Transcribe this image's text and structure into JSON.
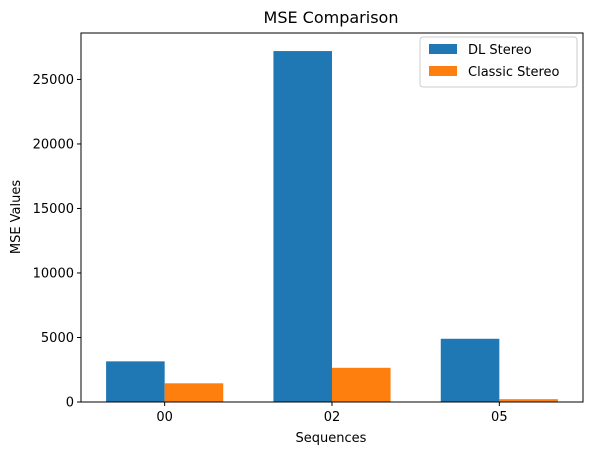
{
  "chart_data": {
    "type": "bar",
    "title": "MSE Comparison",
    "xlabel": "Sequences",
    "ylabel": "MSE Values",
    "categories": [
      "00",
      "02",
      "05"
    ],
    "series": [
      {
        "name": "DL Stereo",
        "color": "#1f77b4",
        "values": [
          3150,
          27200,
          4900
        ]
      },
      {
        "name": "Classic Stereo",
        "color": "#ff7f0e",
        "values": [
          1450,
          2650,
          220
        ]
      }
    ],
    "ylim": [
      0,
      28600
    ],
    "yticks": [
      0,
      5000,
      10000,
      15000,
      20000,
      25000
    ],
    "grid": false,
    "legend_position": "top-right"
  }
}
